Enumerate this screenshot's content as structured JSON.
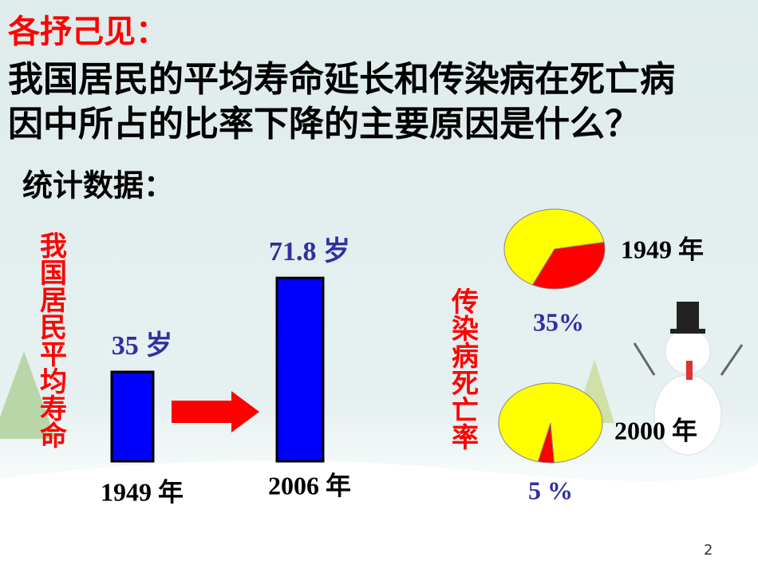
{
  "header": {
    "title": "各抒己见：",
    "question": [
      "我国居民的平均寿命延长和传染病在死亡病",
      "因中所占的比率下降的主要原因是什么？"
    ],
    "subtitle": "统计数据：",
    "page_number": "2"
  },
  "chart_data": [
    {
      "type": "bar",
      "ylabel": "我国居民平均寿命",
      "categories": [
        "1949 年",
        "2006 年"
      ],
      "values": [
        35,
        71.8
      ],
      "value_labels": [
        "35 岁",
        "71.8 岁"
      ],
      "color": "#0000ff"
    },
    {
      "type": "pie",
      "title": "1949 年",
      "ylabel": "传染病死亡率",
      "values": [
        35,
        65
      ],
      "value_labels": [
        "35%",
        null
      ],
      "colors": [
        "#ff0000",
        "#ffff00"
      ]
    },
    {
      "type": "pie",
      "title": "2000 年",
      "values": [
        5,
        95
      ],
      "value_labels": [
        "5 %",
        null
      ],
      "colors": [
        "#ff0000",
        "#ffff00"
      ]
    }
  ]
}
